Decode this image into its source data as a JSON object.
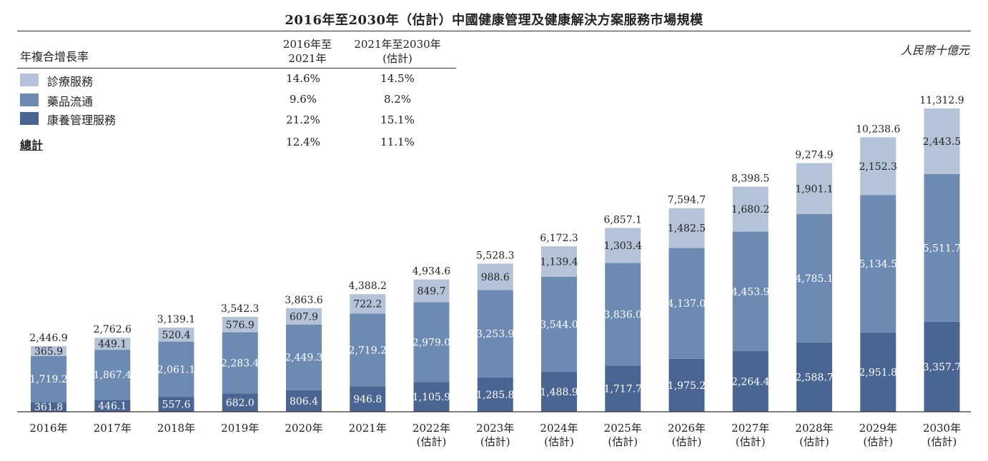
{
  "header": {
    "title": "2016年至2030年（估計）中國健康管理及健康解決方案服務市場規模",
    "unit": "人民幣十億元"
  },
  "cagr_table": {
    "label": "年複合增長率",
    "col1_header": [
      "2016年至",
      "2021年"
    ],
    "col2_header": [
      "2021年至2030年",
      "(估計)"
    ],
    "rows": [
      {
        "name": "診療服務",
        "v1": "14.6%",
        "v2": "14.5%",
        "color": "#b5c3d9"
      },
      {
        "name": "藥品流通",
        "v1": "9.6%",
        "v2": "8.2%",
        "color": "#6d8ab3"
      },
      {
        "name": "康養管理服務",
        "v1": "21.2%",
        "v2": "15.1%",
        "color": "#4a6591"
      }
    ],
    "total": {
      "name": "總計",
      "v1": "12.4%",
      "v2": "11.1%"
    }
  },
  "chart_data": {
    "type": "bar",
    "stacked": true,
    "categories": [
      [
        "2016年"
      ],
      [
        "2017年"
      ],
      [
        "2018年"
      ],
      [
        "2019年"
      ],
      [
        "2020年"
      ],
      [
        "2021年"
      ],
      [
        "2022年",
        "(估計)"
      ],
      [
        "2023年",
        "(估計)"
      ],
      [
        "2024年",
        "(估計)"
      ],
      [
        "2025年",
        "(估計)"
      ],
      [
        "2026年",
        "(估計)"
      ],
      [
        "2027年",
        "(估計)"
      ],
      [
        "2028年",
        "(估計)"
      ],
      [
        "2029年",
        "(估計)"
      ],
      [
        "2030年",
        "(估計)"
      ]
    ],
    "series": [
      {
        "name": "康養管理服務",
        "color": "#4a6591",
        "values": [
          361.8,
          446.1,
          557.6,
          682.0,
          806.4,
          946.8,
          1105.9,
          1285.8,
          1488.9,
          1717.7,
          1975.2,
          2264.4,
          2588.7,
          2951.8,
          3357.7
        ],
        "labels": [
          "361.8",
          "446.1",
          "557.6",
          "682.0",
          "806.4",
          "946.8",
          "1,105.9",
          "1,285.8",
          "1,488.9",
          "1,717.7",
          "1,975.2",
          "2,264.4",
          "2,588.7",
          "2,951.8",
          "3,357.7"
        ]
      },
      {
        "name": "藥品流通",
        "color": "#6d8ab3",
        "values": [
          1719.2,
          1867.4,
          2061.1,
          2283.4,
          2449.3,
          2719.2,
          2979.0,
          3253.9,
          3544.0,
          3836.0,
          4137.0,
          4453.9,
          4785.1,
          5134.5,
          5511.7
        ],
        "labels": [
          "1,719.2",
          "1,867.4",
          "2,061.1",
          "2,283.4",
          "2,449.3",
          "2,719.2",
          "2,979.0",
          "3,253.9",
          "3,544.0",
          "3,836.0",
          "4,137.0",
          "4,453.9",
          "4,785.1",
          "5,134.5",
          "5,511.7"
        ]
      },
      {
        "name": "診療服務",
        "color": "#b5c3d9",
        "values": [
          365.9,
          449.1,
          520.4,
          576.9,
          607.9,
          722.2,
          849.7,
          988.6,
          1139.4,
          1303.4,
          1482.5,
          1680.2,
          1901.1,
          2152.3,
          2443.5
        ],
        "labels": [
          "365.9",
          "449.1",
          "520.4",
          "576.9",
          "607.9",
          "722.2",
          "849.7",
          "988.6",
          "1,139.4",
          "1,303.4",
          "1,482.5",
          "1,680.2",
          "1,901.1",
          "2,152.3",
          "2,443.5"
        ]
      }
    ],
    "totals": [
      2446.9,
      2762.6,
      3139.1,
      3542.3,
      3863.6,
      4388.2,
      4934.6,
      5528.3,
      6172.3,
      6857.1,
      7594.7,
      8398.5,
      9274.9,
      10238.6,
      11312.9
    ],
    "total_labels": [
      "2,446.9",
      "2,762.6",
      "3,139.1",
      "3,542.3",
      "3,863.6",
      "4,388.2",
      "4,934.6",
      "5,528.3",
      "6,172.3",
      "6,857.1",
      "7,594.7",
      "8,398.5",
      "9,274.9",
      "10,238.6",
      "11,312.9"
    ],
    "ylim": [
      0,
      11312.9
    ],
    "xlabel": "",
    "ylabel": ""
  }
}
